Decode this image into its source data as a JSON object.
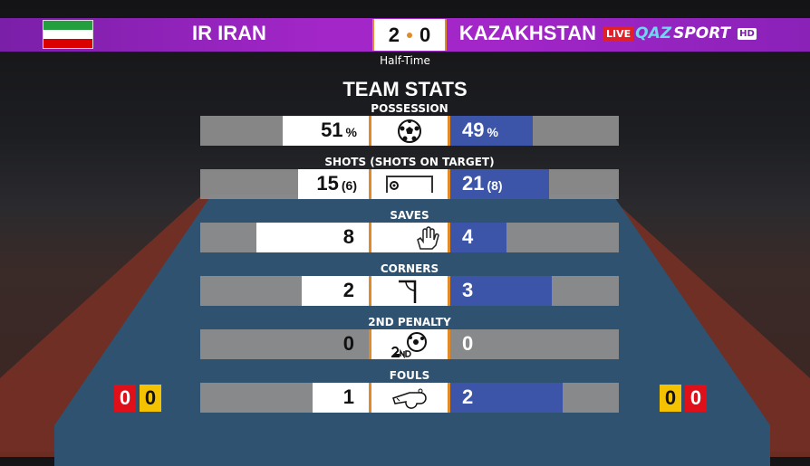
{
  "header": {
    "home_team": "IR IRAN",
    "away_team": "KAZAKHSTAN",
    "home_score": "2",
    "away_score": "0",
    "period": "Half-Time",
    "home_flag_colors": [
      "#239f40",
      "#ffffff",
      "#da0000"
    ]
  },
  "broadcaster": {
    "live": "LIVE",
    "brand_a": "QAZ",
    "brand_b": "SPORT",
    "hd": "HD"
  },
  "title": "TEAM STATS",
  "colors": {
    "home_bar": "#ffffff",
    "away_bar": "#3c55a8",
    "accent": "#e08a2a",
    "track": "#8c8c8c"
  },
  "stats": [
    {
      "label": "POSSESSION",
      "home": "51",
      "home_suffix": "%",
      "away": "49",
      "away_suffix": "%",
      "icon": "soccer-ball-icon"
    },
    {
      "label": "SHOTS (SHOTS ON TARGET)",
      "home": "15",
      "home_suffix": "(6)",
      "away": "21",
      "away_suffix": "(8)",
      "icon": "goal-target-icon"
    },
    {
      "label": "SAVES",
      "home": "8",
      "home_suffix": "",
      "away": "4",
      "away_suffix": "",
      "icon": "goalkeeper-glove-icon"
    },
    {
      "label": "CORNERS",
      "home": "2",
      "home_suffix": "",
      "away": "3",
      "away_suffix": "",
      "icon": "corner-flag-icon"
    },
    {
      "label": "2ND PENALTY",
      "home": "0",
      "home_suffix": "",
      "away": "0",
      "away_suffix": "",
      "icon": "second-penalty-ball-icon"
    },
    {
      "label": "FOULS",
      "home": "1",
      "home_suffix": "",
      "away": "2",
      "away_suffix": "",
      "icon": "whistle-icon"
    }
  ],
  "cards": {
    "home_red": "0",
    "home_yellow": "0",
    "away_yellow": "0",
    "away_red": "0"
  }
}
